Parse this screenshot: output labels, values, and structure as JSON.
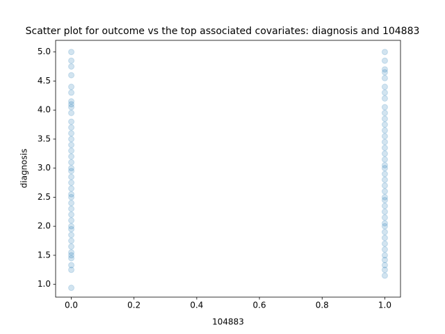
{
  "chart_data": {
    "type": "scatter",
    "title": "Scatter plot for outcome vs the top associated covariates: diagnosis and 104883",
    "xlabel": "104883",
    "ylabel": "diagnosis",
    "color": "#1f77b4",
    "x": [
      0,
      0,
      0,
      0,
      0,
      0,
      0,
      0,
      0,
      0,
      0,
      0,
      0,
      0,
      0,
      0,
      0,
      0,
      0,
      0,
      0,
      0,
      0,
      0,
      0,
      0,
      0,
      0,
      0,
      0,
      0,
      0,
      0,
      0,
      0,
      0,
      0,
      0,
      0,
      0,
      1,
      1,
      1,
      1,
      1,
      1,
      1,
      1,
      1,
      1,
      1,
      1,
      1,
      1,
      1,
      1,
      1,
      1,
      1,
      1,
      1,
      1,
      1,
      1,
      1,
      1,
      1,
      1,
      1,
      1,
      1,
      1,
      1,
      1,
      1,
      1,
      1,
      1,
      1,
      1
    ],
    "y": [
      0.94,
      1.25,
      1.33,
      1.45,
      1.5,
      1.55,
      1.65,
      1.75,
      1.85,
      1.95,
      2.0,
      2.1,
      2.2,
      2.3,
      2.4,
      2.5,
      2.55,
      2.65,
      2.75,
      2.85,
      2.95,
      3.0,
      3.1,
      3.2,
      3.3,
      3.4,
      3.5,
      3.6,
      3.7,
      3.8,
      3.95,
      4.05,
      4.1,
      4.15,
      4.3,
      4.4,
      4.6,
      4.75,
      4.85,
      5.0,
      1.15,
      1.25,
      1.33,
      1.42,
      1.5,
      1.6,
      1.7,
      1.8,
      1.9,
      2.0,
      2.05,
      2.15,
      2.25,
      2.35,
      2.45,
      2.5,
      2.6,
      2.7,
      2.8,
      2.9,
      3.0,
      3.05,
      3.15,
      3.25,
      3.35,
      3.45,
      3.55,
      3.65,
      3.75,
      3.85,
      3.95,
      4.05,
      4.2,
      4.3,
      4.4,
      4.55,
      4.7,
      4.85,
      5.0,
      4.65
    ],
    "xlim": [
      -0.05,
      1.05
    ],
    "ylim": [
      0.78,
      5.2
    ],
    "xticks": [
      {
        "value": 0,
        "label": "0.0"
      },
      {
        "value": 0.2,
        "label": "0.2"
      },
      {
        "value": 0.4,
        "label": "0.4"
      },
      {
        "value": 0.6,
        "label": "0.6"
      },
      {
        "value": 0.8,
        "label": "0.8"
      },
      {
        "value": 1,
        "label": "1.0"
      }
    ],
    "yticks": [
      {
        "value": 1,
        "label": "1.0"
      },
      {
        "value": 1.5,
        "label": "1.5"
      },
      {
        "value": 2,
        "label": "2.0"
      },
      {
        "value": 2.5,
        "label": "2.5"
      },
      {
        "value": 3,
        "label": "3.0"
      },
      {
        "value": 3.5,
        "label": "3.5"
      },
      {
        "value": 4,
        "label": "4.0"
      },
      {
        "value": 4.5,
        "label": "4.5"
      },
      {
        "value": 5,
        "label": "5.0"
      }
    ]
  }
}
